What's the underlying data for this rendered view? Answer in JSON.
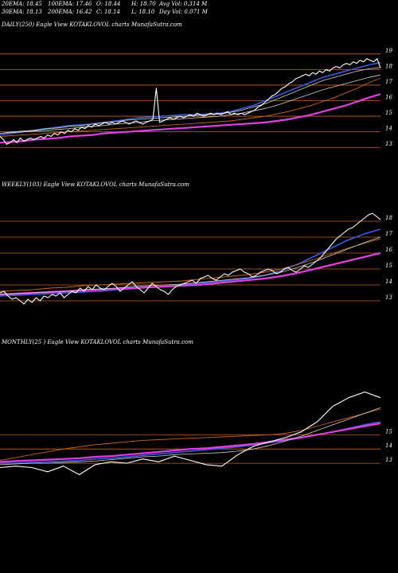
{
  "stats": {
    "ema20": "20EMA: 18.45",
    "ema100": "100EMA: 17.46",
    "open": "O: 18.44",
    "high": "H: 18.70",
    "avg_vol": "Avg Vol: 0.314  M",
    "ema30": "30EMA: 18.13",
    "ema200": "200EMA: 16.42",
    "close": "C: 18.14",
    "low": "L: 18.10",
    "day_vol": "Day Vol: 0.071 M"
  },
  "colors": {
    "background": "#000000",
    "level_line": "#c8651b",
    "price": "#ffffff",
    "ema_blue": "#3b5bdb",
    "ema_magenta": "#e040e0",
    "ema_orange": "#c8651b",
    "ema_white": "#d0d0d0"
  },
  "chart_data": [
    {
      "type": "line",
      "title": "DAILY(250) Eagle  View  KOTAKLOVOL  charts MunafaSutra.com",
      "y_ticks": [
        "19",
        "18",
        "17",
        "16",
        "15",
        "14",
        "13"
      ],
      "ylim": [
        12.5,
        19.4
      ],
      "series": [
        {
          "role": "price",
          "values": [
            13.7,
            13.5,
            13.2,
            13.3,
            13.5,
            13.3,
            13.6,
            13.4,
            13.5,
            13.6,
            13.5,
            13.6,
            13.7,
            13.6,
            13.8,
            13.7,
            13.9,
            13.8,
            14.0,
            13.9,
            14.1,
            14.0,
            14.2,
            14.1,
            14.3,
            14.2,
            14.4,
            14.3,
            14.5,
            14.4,
            14.5,
            14.6,
            14.5,
            14.6,
            14.5,
            14.6,
            14.7,
            14.6,
            14.5,
            14.6,
            14.7,
            14.6,
            14.5,
            14.6,
            14.7,
            14.8,
            16.8,
            14.6,
            14.7,
            14.8,
            14.9,
            14.8,
            14.9,
            15.0,
            14.9,
            15.0,
            15.1,
            15.0,
            15.2,
            15.1,
            15.0,
            15.1,
            15.2,
            15.1,
            15.2,
            15.1,
            15.2,
            15.3,
            15.1,
            15.2,
            15.1,
            15.2,
            15.1,
            15.2,
            15.3,
            15.4,
            15.6,
            15.7,
            15.9,
            16.1,
            16.3,
            16.4,
            16.6,
            16.8,
            16.9,
            17.1,
            17.2,
            17.4,
            17.5,
            17.6,
            17.7,
            17.6,
            17.8,
            17.7,
            17.9,
            17.8,
            18.0,
            17.9,
            18.1,
            18.2,
            18.1,
            18.3,
            18.4,
            18.3,
            18.5,
            18.4,
            18.6,
            18.5,
            18.7,
            18.6,
            18.5,
            18.7,
            18.1
          ]
        },
        {
          "role": "ema20",
          "values": [
            13.8,
            13.9,
            14.0,
            14.1,
            14.2,
            14.3,
            14.4,
            14.45,
            14.5,
            14.6,
            14.7,
            14.8,
            14.9,
            14.95,
            15.0,
            15.05,
            15.1,
            15.1,
            15.15,
            15.2,
            15.3,
            15.5,
            15.7,
            16.0,
            16.3,
            16.6,
            16.9,
            17.2,
            17.5,
            17.7,
            17.9,
            18.1,
            18.3,
            18.45
          ]
        },
        {
          "role": "ema30",
          "values": [
            13.9,
            14.0,
            14.05,
            14.1,
            14.2,
            14.25,
            14.35,
            14.4,
            14.5,
            14.6,
            14.65,
            14.75,
            14.8,
            14.85,
            14.9,
            14.95,
            15.0,
            15.05,
            15.1,
            15.15,
            15.25,
            15.4,
            15.6,
            15.8,
            16.1,
            16.4,
            16.7,
            17.0,
            17.3,
            17.5,
            17.7,
            17.9,
            18.05,
            18.13
          ]
        },
        {
          "role": "ema50",
          "values": [
            13.9,
            13.95,
            14.0,
            14.05,
            14.1,
            14.15,
            14.2,
            14.3,
            14.35,
            14.4,
            14.5,
            14.55,
            14.6,
            14.7,
            14.75,
            14.8,
            14.85,
            14.9,
            14.95,
            15.0,
            15.1,
            15.2,
            15.35,
            15.5,
            15.7,
            15.95,
            16.2,
            16.45,
            16.7,
            16.9,
            17.1,
            17.3,
            17.5,
            17.65
          ]
        },
        {
          "role": "ema100",
          "values": [
            13.7,
            13.75,
            13.8,
            13.85,
            13.9,
            13.95,
            14.0,
            14.05,
            14.1,
            14.15,
            14.2,
            14.25,
            14.3,
            14.35,
            14.4,
            14.45,
            14.5,
            14.55,
            14.6,
            14.65,
            14.7,
            14.8,
            14.9,
            15.0,
            15.15,
            15.3,
            15.5,
            15.7,
            15.95,
            16.2,
            16.5,
            16.8,
            17.15,
            17.46
          ]
        },
        {
          "role": "ema200",
          "values": [
            13.3,
            13.35,
            13.4,
            13.5,
            13.55,
            13.6,
            13.7,
            13.75,
            13.8,
            13.9,
            13.95,
            14.0,
            14.05,
            14.1,
            14.15,
            14.2,
            14.25,
            14.3,
            14.35,
            14.4,
            14.45,
            14.5,
            14.55,
            14.6,
            14.7,
            14.8,
            14.95,
            15.1,
            15.3,
            15.5,
            15.7,
            15.95,
            16.2,
            16.42
          ]
        }
      ]
    },
    {
      "type": "line",
      "title": "WEEKLY(103) Eagle  View  KOTAKLOVOL  charts MunafaSutra.com",
      "y_ticks": [
        "18",
        "17",
        "16",
        "15",
        "14",
        "13"
      ],
      "ylim": [
        12.4,
        18.9
      ],
      "series": [
        {
          "role": "price",
          "values": [
            13.5,
            13.6,
            13.3,
            13.1,
            13.2,
            13.0,
            12.8,
            13.1,
            12.9,
            13.2,
            13.0,
            13.3,
            13.2,
            13.4,
            13.3,
            13.5,
            13.2,
            13.4,
            13.6,
            13.5,
            13.8,
            13.6,
            13.9,
            13.7,
            14.0,
            13.8,
            13.7,
            13.9,
            14.1,
            13.9,
            13.6,
            13.8,
            14.0,
            14.2,
            13.9,
            13.7,
            13.5,
            13.8,
            14.1,
            13.9,
            13.7,
            13.6,
            13.4,
            13.7,
            13.9,
            14.0,
            14.1,
            14.2,
            14.3,
            14.1,
            14.4,
            14.5,
            14.6,
            14.4,
            14.3,
            14.5,
            14.7,
            14.6,
            14.8,
            14.9,
            15.0,
            14.8,
            14.7,
            14.5,
            14.6,
            14.8,
            14.9,
            15.0,
            14.9,
            14.7,
            14.8,
            15.0,
            15.1,
            14.9,
            14.8,
            15.0,
            15.2,
            15.1,
            15.3,
            15.5,
            15.7,
            16.0,
            16.3,
            16.6,
            16.9,
            17.1,
            17.3,
            17.5,
            17.6,
            17.8,
            18.0,
            18.2,
            18.4,
            18.5,
            18.3,
            18.1
          ]
        },
        {
          "role": "ema_blue",
          "values": [
            13.3,
            13.35,
            13.4,
            13.45,
            13.5,
            13.55,
            13.6,
            13.7,
            13.75,
            13.85,
            13.9,
            14.0,
            14.1,
            14.2,
            14.3,
            14.4,
            14.6,
            14.9,
            15.3,
            15.8,
            16.3,
            16.8,
            17.2,
            17.5
          ]
        },
        {
          "role": "ema_magenta",
          "values": [
            13.4,
            13.45,
            13.5,
            13.55,
            13.6,
            13.65,
            13.7,
            13.75,
            13.8,
            13.85,
            13.9,
            13.95,
            14.0,
            14.1,
            14.2,
            14.3,
            14.4,
            14.55,
            14.75,
            15.0,
            15.25,
            15.5,
            15.75,
            16.0
          ]
        },
        {
          "role": "ema_orange",
          "values": [
            13.6,
            13.65,
            13.7,
            13.8,
            13.85,
            13.95,
            14.0,
            14.05,
            14.1,
            14.15,
            14.2,
            14.25,
            14.35,
            14.45,
            14.55,
            14.65,
            14.8,
            15.0,
            15.3,
            15.6,
            15.95,
            16.3,
            16.6,
            16.9
          ]
        },
        {
          "role": "ema_white",
          "values": [
            13.4,
            13.45,
            13.5,
            13.55,
            13.6,
            13.7,
            13.75,
            13.8,
            13.9,
            13.95,
            14.0,
            14.05,
            14.15,
            14.25,
            14.35,
            14.45,
            14.6,
            14.8,
            15.1,
            15.45,
            15.85,
            16.25,
            16.65,
            17.0
          ]
        }
      ]
    },
    {
      "type": "line",
      "title": "MONTHLY(25                     ) Eagle  View  KOTAKLOVOL  charts MunafaSutra.com",
      "y_ticks": [
        "15",
        "14",
        "13"
      ],
      "ylim": [
        12.0,
        18.7
      ],
      "series": [
        {
          "role": "price",
          "values": [
            12.7,
            12.8,
            12.7,
            12.4,
            12.8,
            12.2,
            12.9,
            13.1,
            13.0,
            13.3,
            13.1,
            13.5,
            13.2,
            12.9,
            12.8,
            13.6,
            14.2,
            14.5,
            14.8,
            15.2,
            15.9,
            17.0,
            17.6,
            18.0,
            17.6
          ]
        },
        {
          "role": "ema_blue",
          "values": [
            13.0,
            13.0,
            13.05,
            13.1,
            13.15,
            13.2,
            13.3,
            13.35,
            13.45,
            13.55,
            13.65,
            13.75,
            13.85,
            13.95,
            14.05,
            14.15,
            14.3,
            14.45,
            14.6,
            14.8,
            15.0,
            15.2,
            15.45,
            15.7,
            15.9
          ]
        },
        {
          "role": "ema_magenta",
          "values": [
            13.1,
            13.15,
            13.2,
            13.25,
            13.3,
            13.35,
            13.45,
            13.5,
            13.6,
            13.7,
            13.8,
            13.9,
            14.0,
            14.05,
            14.15,
            14.25,
            14.35,
            14.5,
            14.65,
            14.8,
            15.0,
            15.2,
            15.4,
            15.6,
            15.8
          ]
        },
        {
          "role": "ema_orange",
          "values": [
            13.2,
            13.4,
            13.6,
            13.8,
            14.0,
            14.15,
            14.3,
            14.4,
            14.5,
            14.6,
            14.65,
            14.7,
            14.75,
            14.8,
            14.85,
            14.9,
            14.95,
            15.0,
            15.1,
            15.3,
            15.6,
            15.9,
            16.2,
            16.5,
            16.8
          ]
        },
        {
          "role": "ema_white",
          "values": [
            12.9,
            12.95,
            13.0,
            13.0,
            13.05,
            13.1,
            13.15,
            13.25,
            13.35,
            13.45,
            13.5,
            13.6,
            13.65,
            13.7,
            13.75,
            13.85,
            14.0,
            14.25,
            14.55,
            14.9,
            15.3,
            15.7,
            16.1,
            16.5,
            16.9
          ]
        }
      ]
    }
  ]
}
